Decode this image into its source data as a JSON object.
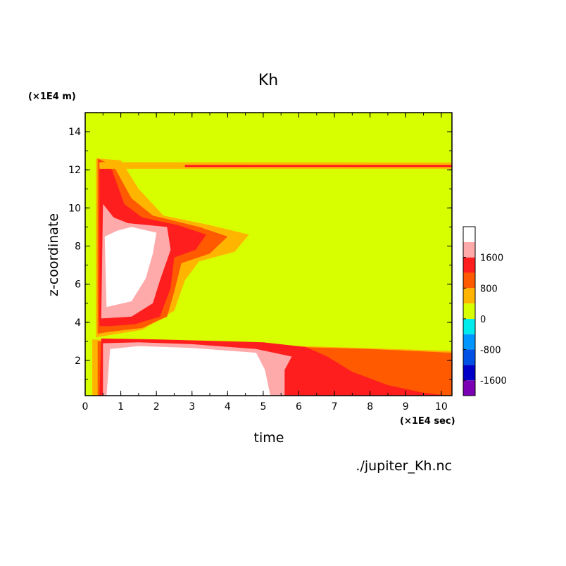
{
  "chart_data": {
    "type": "heatmap",
    "title": "Kh",
    "xlabel": "time",
    "ylabel": "z-coordinate",
    "x_unit_label": "(×1E4 sec)",
    "y_unit_label": "(×1E4 m)",
    "source_label": "./jupiter_Kh.nc",
    "xlim": [
      0,
      10.3
    ],
    "ylim": [
      0.15,
      15
    ],
    "x_ticks": [
      {
        "value": 0,
        "label": "0"
      },
      {
        "value": 1,
        "label": "1"
      },
      {
        "value": 2,
        "label": "2"
      },
      {
        "value": 3,
        "label": "3"
      },
      {
        "value": 4,
        "label": "4"
      },
      {
        "value": 5,
        "label": "5"
      },
      {
        "value": 6,
        "label": "6"
      },
      {
        "value": 7,
        "label": "7"
      },
      {
        "value": 8,
        "label": "8"
      },
      {
        "value": 9,
        "label": "9"
      },
      {
        "value": 10,
        "label": "10"
      }
    ],
    "y_ticks": [
      {
        "value": 2,
        "label": "2"
      },
      {
        "value": 4,
        "label": "4"
      },
      {
        "value": 6,
        "label": "6"
      },
      {
        "value": 8,
        "label": "8"
      },
      {
        "value": 10,
        "label": "10"
      },
      {
        "value": 12,
        "label": "12"
      },
      {
        "value": 14,
        "label": "14"
      }
    ],
    "background_level_color": "#d7ff00",
    "colorbar": {
      "levels": [
        {
          "range": [
            -2000,
            -1600
          ],
          "color": "#7b00b4"
        },
        {
          "range": [
            -1600,
            -1200
          ],
          "color": "#0000c8"
        },
        {
          "range": [
            -1200,
            -800
          ],
          "color": "#0050e6"
        },
        {
          "range": [
            -800,
            -400
          ],
          "color": "#0096ff"
        },
        {
          "range": [
            -400,
            0
          ],
          "color": "#00ebeb"
        },
        {
          "range": [
            0,
            400
          ],
          "color": "#d7ff00"
        },
        {
          "range": [
            400,
            800
          ],
          "color": "#ffb400"
        },
        {
          "range": [
            800,
            1200
          ],
          "color": "#ff5a00"
        },
        {
          "range": [
            1200,
            1600
          ],
          "color": "#ff1e1e"
        },
        {
          "range": [
            1600,
            2000
          ],
          "color": "#ffaaaa"
        }
      ],
      "over_color": "#ffffff",
      "tick_labels": [
        {
          "value": 1600,
          "label": "1600"
        },
        {
          "value": 800,
          "label": "800"
        },
        {
          "value": 0,
          "label": "0"
        },
        {
          "value": -800,
          "label": "-800"
        },
        {
          "value": -1600,
          "label": "-1600"
        }
      ]
    },
    "regions": [
      {
        "name": "lower-layer-weak",
        "color": "#ffb400",
        "poly": [
          [
            0.2,
            0.15
          ],
          [
            0.2,
            3.1
          ],
          [
            10.3,
            2.5
          ],
          [
            10.3,
            0.15
          ]
        ]
      },
      {
        "name": "lower-layer-moderate",
        "color": "#ff5a00",
        "poly": [
          [
            0.35,
            0.15
          ],
          [
            0.35,
            3.0
          ],
          [
            4,
            2.9
          ],
          [
            6,
            2.7
          ],
          [
            8,
            2.6
          ],
          [
            10.3,
            2.4
          ],
          [
            10.3,
            0.15
          ]
        ]
      },
      {
        "name": "lower-layer-strong",
        "color": "#ff1e1e",
        "poly": [
          [
            0.4,
            0.15
          ],
          [
            0.45,
            3.15
          ],
          [
            2,
            3.1
          ],
          [
            4,
            3.0
          ],
          [
            5,
            2.95
          ],
          [
            6.2,
            2.7
          ],
          [
            6.8,
            2.2
          ],
          [
            7.5,
            1.4
          ],
          [
            8.5,
            0.7
          ],
          [
            9.5,
            0.3
          ],
          [
            10.2,
            0.15
          ]
        ]
      },
      {
        "name": "lower-layer-very-strong",
        "color": "#ffaaaa",
        "poly": [
          [
            0.5,
            0.15
          ],
          [
            0.5,
            2.9
          ],
          [
            1.5,
            2.95
          ],
          [
            3,
            2.85
          ],
          [
            4.8,
            2.6
          ],
          [
            5.8,
            2.2
          ],
          [
            5.6,
            1.5
          ],
          [
            5.6,
            0.15
          ]
        ]
      },
      {
        "name": "lower-layer-peak",
        "color": "#ffffff",
        "poly": [
          [
            0.6,
            0.15
          ],
          [
            0.7,
            2.6
          ],
          [
            1.5,
            2.75
          ],
          [
            3,
            2.65
          ],
          [
            4.8,
            2.4
          ],
          [
            5.05,
            1.5
          ],
          [
            5.2,
            0.15
          ]
        ]
      },
      {
        "name": "upper-layer-weak",
        "color": "#ffb400",
        "poly": [
          [
            0.3,
            3.2
          ],
          [
            0.3,
            12.6
          ],
          [
            1,
            12.5
          ],
          [
            1.5,
            11
          ],
          [
            2.2,
            9.6
          ],
          [
            3.5,
            9.1
          ],
          [
            4.6,
            8.6
          ],
          [
            4.2,
            7.7
          ],
          [
            3.2,
            7.2
          ],
          [
            2.8,
            6.2
          ],
          [
            2.5,
            4.6
          ],
          [
            1.6,
            3.6
          ],
          [
            0.6,
            3.3
          ]
        ]
      },
      {
        "name": "upper-layer-moderate",
        "color": "#ff5a00",
        "poly": [
          [
            0.35,
            3.4
          ],
          [
            0.35,
            12.6
          ],
          [
            0.8,
            12.2
          ],
          [
            1.3,
            10.5
          ],
          [
            1.9,
            9.6
          ],
          [
            3.2,
            9.0
          ],
          [
            4.0,
            8.5
          ],
          [
            3.5,
            7.6
          ],
          [
            2.7,
            7.1
          ],
          [
            2.5,
            5.6
          ],
          [
            2.3,
            4.3
          ],
          [
            1.6,
            3.7
          ],
          [
            0.7,
            3.5
          ]
        ]
      },
      {
        "name": "upper-layer-strong",
        "color": "#ff1e1e",
        "poly": [
          [
            0.4,
            3.8
          ],
          [
            0.4,
            12.5
          ],
          [
            0.75,
            12
          ],
          [
            1.1,
            10.2
          ],
          [
            1.6,
            9.5
          ],
          [
            2.6,
            9.1
          ],
          [
            3.4,
            8.6
          ],
          [
            3.1,
            7.8
          ],
          [
            2.5,
            7.4
          ],
          [
            2.4,
            5.8
          ],
          [
            2.1,
            4.3
          ],
          [
            1.4,
            3.9
          ],
          [
            0.7,
            3.8
          ]
        ]
      },
      {
        "name": "upper-layer-very-strong",
        "color": "#ffaaaa",
        "poly": [
          [
            0.45,
            4.2
          ],
          [
            0.5,
            10.2
          ],
          [
            0.8,
            9.5
          ],
          [
            1.2,
            9.2
          ],
          [
            2.3,
            9.0
          ],
          [
            2.4,
            7.8
          ],
          [
            2.1,
            6.2
          ],
          [
            1.9,
            5.0
          ],
          [
            1.3,
            4.3
          ]
        ]
      },
      {
        "name": "upper-layer-peak",
        "color": "#ffffff",
        "poly": [
          [
            0.6,
            4.8
          ],
          [
            0.55,
            8.5
          ],
          [
            0.9,
            8.8
          ],
          [
            1.3,
            9.0
          ],
          [
            2.0,
            8.7
          ],
          [
            1.9,
            7.6
          ],
          [
            1.7,
            6.3
          ],
          [
            1.3,
            5.1
          ]
        ]
      },
      {
        "name": "top-band-weak",
        "color": "#ffb400",
        "poly": [
          [
            0.4,
            12.05
          ],
          [
            10.3,
            12.05
          ],
          [
            10.3,
            12.38
          ],
          [
            0.4,
            12.4
          ]
        ]
      },
      {
        "name": "top-band-strong",
        "color": "#ff1e1e",
        "poly": [
          [
            2.8,
            12.15
          ],
          [
            10.3,
            12.15
          ],
          [
            10.3,
            12.26
          ],
          [
            2.8,
            12.26
          ]
        ]
      }
    ]
  }
}
